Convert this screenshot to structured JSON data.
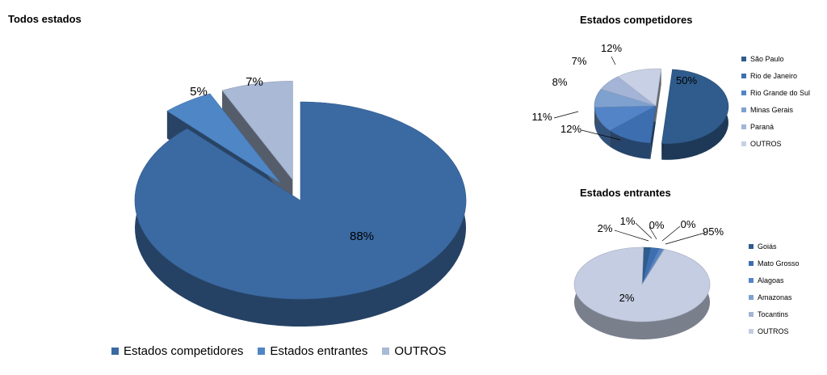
{
  "chart_data": [
    {
      "type": "pie",
      "title": "Todos estados",
      "categories": [
        "Estados competidores",
        "Estados entrantes",
        "OUTROS"
      ],
      "values": [
        88,
        5,
        7
      ],
      "data_labels": [
        "88%",
        "5%",
        "7%"
      ],
      "colors": [
        "#3b6aa3",
        "#4f86c6",
        "#a9b9d6"
      ],
      "legend_position": "bottom"
    },
    {
      "type": "pie",
      "title": "Estados competidores",
      "categories": [
        "São Paulo",
        "Rio de Janeiro",
        "Rio Grande do Sul",
        "Minas Gerais",
        "Paraná",
        "OUTROS"
      ],
      "values": [
        50,
        12,
        11,
        8,
        7,
        12
      ],
      "data_labels": [
        "50%",
        "12%",
        "11%",
        "8%",
        "7%",
        "12%"
      ],
      "colors": [
        "#2f5c8c",
        "#3d6fb0",
        "#5384c7",
        "#7ea1cf",
        "#a3b4d6",
        "#c7d0e4"
      ],
      "legend_position": "right"
    },
    {
      "type": "pie",
      "title": "Estados entrantes",
      "categories": [
        "Goiás",
        "Mato Grosso",
        "Alagoas",
        "Amazonas",
        "Tocantins",
        "OUTROS"
      ],
      "values": [
        2,
        2,
        1,
        0,
        0,
        95
      ],
      "data_labels": [
        "2%",
        "2%",
        "1%",
        "0%",
        "0%",
        "95%"
      ],
      "colors": [
        "#2f5c8c",
        "#3d6fb0",
        "#5384c7",
        "#7ea1cf",
        "#a3b4d6",
        "#c5cde2"
      ],
      "legend_position": "right"
    }
  ]
}
